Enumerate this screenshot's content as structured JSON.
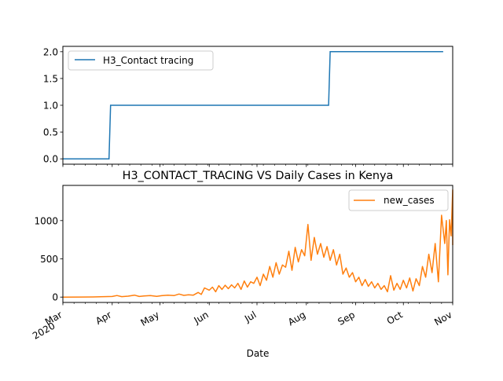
{
  "colors": {
    "series_top": "#1f77b4",
    "series_bottom": "#ff7f0e",
    "axes": "#000000",
    "background": "#ffffff"
  },
  "chart_data": [
    {
      "type": "line",
      "title": "",
      "xlabel": "",
      "ylabel": "",
      "x_type": "date",
      "xlim": [
        "2020-03-01",
        "2020-11-01"
      ],
      "ylim": [
        -0.1,
        2.1
      ],
      "yticks": [
        "0.0",
        "0.5",
        "1.0",
        "1.5",
        "2.0"
      ],
      "grid": false,
      "legend": "top-left",
      "series": [
        {
          "name": "H3_Contact tracing",
          "points": [
            [
              "2020-03-01",
              0
            ],
            [
              "2020-03-30",
              0
            ],
            [
              "2020-03-31",
              1
            ],
            [
              "2020-08-15",
              1
            ],
            [
              "2020-08-16",
              2
            ],
            [
              "2020-10-26",
              2
            ]
          ]
        }
      ]
    },
    {
      "type": "line",
      "title": "H3_CONTACT_TRACING VS Daily Cases in Kenya",
      "xlabel": "Date",
      "ylabel": "",
      "x_type": "date",
      "xlim": [
        "2020-03-01",
        "2020-11-01"
      ],
      "ylim": [
        -70,
        1460
      ],
      "yticks": [
        "0",
        "500",
        "1000"
      ],
      "xticks": [
        {
          "date": "2020-03-01",
          "label": "Mar",
          "sublabel": "2020"
        },
        {
          "date": "2020-04-01",
          "label": "Apr"
        },
        {
          "date": "2020-05-01",
          "label": "May"
        },
        {
          "date": "2020-06-01",
          "label": "Jun"
        },
        {
          "date": "2020-07-01",
          "label": "Jul"
        },
        {
          "date": "2020-08-01",
          "label": "Aug"
        },
        {
          "date": "2020-09-01",
          "label": "Sep"
        },
        {
          "date": "2020-10-01",
          "label": "Oct"
        },
        {
          "date": "2020-11-01",
          "label": "Nov"
        }
      ],
      "grid": false,
      "legend": "top-right",
      "series": [
        {
          "name": "new_cases",
          "points": [
            [
              "2020-03-01",
              0
            ],
            [
              "2020-03-13",
              1
            ],
            [
              "2020-03-20",
              2
            ],
            [
              "2020-03-27",
              6
            ],
            [
              "2020-04-01",
              8
            ],
            [
              "2020-04-04",
              20
            ],
            [
              "2020-04-07",
              6
            ],
            [
              "2020-04-11",
              12
            ],
            [
              "2020-04-15",
              25
            ],
            [
              "2020-04-18",
              8
            ],
            [
              "2020-04-21",
              15
            ],
            [
              "2020-04-25",
              20
            ],
            [
              "2020-04-29",
              10
            ],
            [
              "2020-05-02",
              18
            ],
            [
              "2020-05-06",
              25
            ],
            [
              "2020-05-10",
              20
            ],
            [
              "2020-05-13",
              40
            ],
            [
              "2020-05-16",
              22
            ],
            [
              "2020-05-19",
              30
            ],
            [
              "2020-05-22",
              25
            ],
            [
              "2020-05-25",
              60
            ],
            [
              "2020-05-27",
              35
            ],
            [
              "2020-05-29",
              120
            ],
            [
              "2020-06-01",
              90
            ],
            [
              "2020-06-03",
              130
            ],
            [
              "2020-06-05",
              70
            ],
            [
              "2020-06-07",
              150
            ],
            [
              "2020-06-09",
              100
            ],
            [
              "2020-06-11",
              155
            ],
            [
              "2020-06-13",
              110
            ],
            [
              "2020-06-15",
              160
            ],
            [
              "2020-06-17",
              120
            ],
            [
              "2020-06-19",
              180
            ],
            [
              "2020-06-21",
              100
            ],
            [
              "2020-06-23",
              210
            ],
            [
              "2020-06-25",
              130
            ],
            [
              "2020-06-27",
              200
            ],
            [
              "2020-06-29",
              180
            ],
            [
              "2020-07-01",
              260
            ],
            [
              "2020-07-03",
              150
            ],
            [
              "2020-07-05",
              300
            ],
            [
              "2020-07-07",
              220
            ],
            [
              "2020-07-09",
              400
            ],
            [
              "2020-07-11",
              260
            ],
            [
              "2020-07-13",
              450
            ],
            [
              "2020-07-15",
              300
            ],
            [
              "2020-07-17",
              420
            ],
            [
              "2020-07-19",
              390
            ],
            [
              "2020-07-21",
              600
            ],
            [
              "2020-07-23",
              350
            ],
            [
              "2020-07-25",
              650
            ],
            [
              "2020-07-27",
              460
            ],
            [
              "2020-07-29",
              620
            ],
            [
              "2020-07-31",
              540
            ],
            [
              "2020-08-02",
              950
            ],
            [
              "2020-08-04",
              480
            ],
            [
              "2020-08-06",
              780
            ],
            [
              "2020-08-08",
              560
            ],
            [
              "2020-08-10",
              700
            ],
            [
              "2020-08-12",
              520
            ],
            [
              "2020-08-14",
              660
            ],
            [
              "2020-08-16",
              480
            ],
            [
              "2020-08-18",
              620
            ],
            [
              "2020-08-20",
              420
            ],
            [
              "2020-08-22",
              560
            ],
            [
              "2020-08-24",
              300
            ],
            [
              "2020-08-26",
              380
            ],
            [
              "2020-08-28",
              260
            ],
            [
              "2020-08-30",
              320
            ],
            [
              "2020-09-01",
              200
            ],
            [
              "2020-09-03",
              260
            ],
            [
              "2020-09-05",
              150
            ],
            [
              "2020-09-07",
              230
            ],
            [
              "2020-09-09",
              140
            ],
            [
              "2020-09-11",
              200
            ],
            [
              "2020-09-13",
              120
            ],
            [
              "2020-09-15",
              180
            ],
            [
              "2020-09-17",
              100
            ],
            [
              "2020-09-19",
              150
            ],
            [
              "2020-09-21",
              70
            ],
            [
              "2020-09-23",
              280
            ],
            [
              "2020-09-25",
              90
            ],
            [
              "2020-09-27",
              180
            ],
            [
              "2020-09-29",
              100
            ],
            [
              "2020-10-01",
              220
            ],
            [
              "2020-10-03",
              120
            ],
            [
              "2020-10-05",
              250
            ],
            [
              "2020-10-07",
              80
            ],
            [
              "2020-10-09",
              240
            ],
            [
              "2020-10-11",
              150
            ],
            [
              "2020-10-13",
              400
            ],
            [
              "2020-10-15",
              260
            ],
            [
              "2020-10-17",
              560
            ],
            [
              "2020-10-19",
              320
            ],
            [
              "2020-10-21",
              700
            ],
            [
              "2020-10-23",
              200
            ],
            [
              "2020-10-25",
              1070
            ],
            [
              "2020-10-27",
              700
            ],
            [
              "2020-10-28",
              1000
            ],
            [
              "2020-10-29",
              290
            ],
            [
              "2020-10-30",
              1010
            ],
            [
              "2020-10-31",
              800
            ],
            [
              "2020-11-01",
              1400
            ],
            [
              "2020-11-01",
              680
            ]
          ]
        }
      ]
    }
  ]
}
